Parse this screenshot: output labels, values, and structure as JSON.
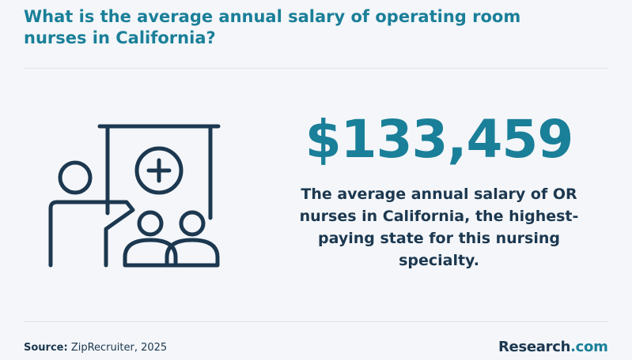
{
  "title": "What is the average annual salary of operating room nurses in California?",
  "stat": {
    "value": "$133,459",
    "description": "The average annual salary of OR nurses in California, the highest-paying state for this nursing specialty."
  },
  "footer": {
    "source_label": "Source:",
    "source_value": " ZipRecruiter, 2025",
    "brand_name": "Research",
    "brand_suffix": ".com"
  },
  "illustration": {
    "icon": "presentation-with-medical-cross-icon"
  },
  "colors": {
    "accent": "#1a7f99",
    "dark": "#1c3850",
    "background": "#f4f6f9"
  }
}
